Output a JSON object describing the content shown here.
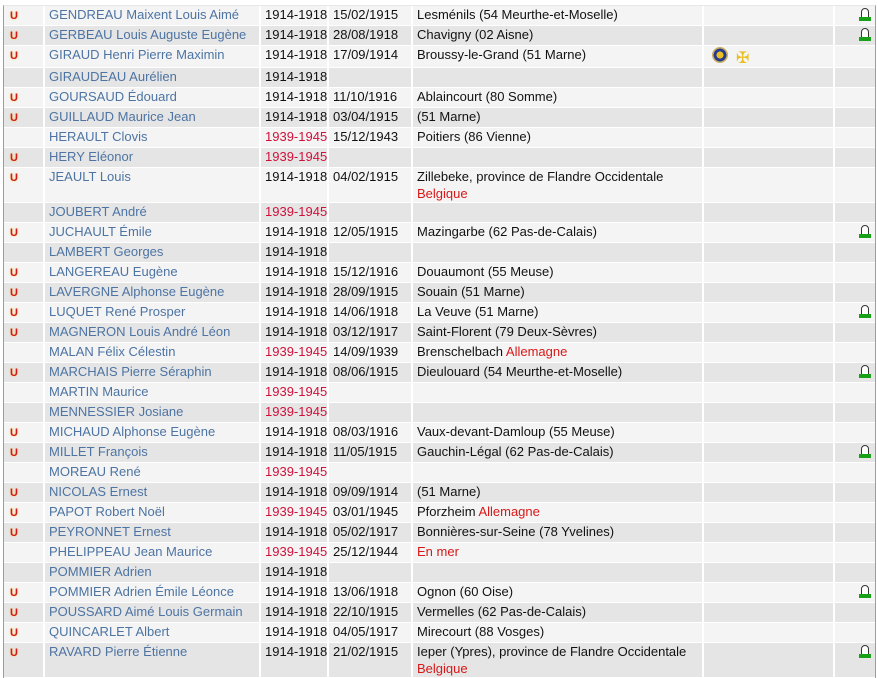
{
  "colors": {
    "name_link": "#4d74a3",
    "ww2_period": "#d0103a",
    "country": "#d81818",
    "grave_icon": "#19a019"
  },
  "rows": [
    {
      "icon": true,
      "name": "GENDREAU Maixent Louis Aimé",
      "period": "1914-1918",
      "date": "15/02/1915",
      "place": "Lesménils (54 Meurthe-et-Moselle)",
      "country": "",
      "grave": true,
      "medals": false
    },
    {
      "icon": true,
      "name": "GERBEAU Louis Auguste Eugène",
      "period": "1914-1918",
      "date": "28/08/1918",
      "place": "Chavigny (02 Aisne)",
      "country": "",
      "grave": true,
      "medals": false
    },
    {
      "icon": true,
      "name": "GIRAUD Henri Pierre Maximin",
      "period": "1914-1918",
      "date": "17/09/1914",
      "place": "Broussy-le-Grand (51 Marne)",
      "country": "",
      "grave": false,
      "medals": true
    },
    {
      "icon": false,
      "name": "GIRAUDEAU Aurélien",
      "period": "1914-1918",
      "date": "",
      "place": "",
      "country": "",
      "grave": false,
      "medals": false
    },
    {
      "icon": true,
      "name": "GOURSAUD Édouard",
      "period": "1914-1918",
      "date": "11/10/1916",
      "place": "Ablaincourt (80 Somme)",
      "country": "",
      "grave": false,
      "medals": false
    },
    {
      "icon": true,
      "name": "GUILLAUD Maurice Jean",
      "period": "1914-1918",
      "date": "03/04/1915",
      "place": "(51 Marne)",
      "country": "",
      "grave": false,
      "medals": false
    },
    {
      "icon": false,
      "name": "HERAULT Clovis",
      "period": "1939-1945",
      "date": "15/12/1943",
      "place": "Poitiers (86 Vienne)",
      "country": "",
      "grave": false,
      "medals": false
    },
    {
      "icon": true,
      "name": "HERY Eléonor",
      "period": "1939-1945",
      "date": "",
      "place": "",
      "country": "",
      "grave": false,
      "medals": false
    },
    {
      "icon": true,
      "name": "JEAULT Louis",
      "period": "1914-1918",
      "date": "04/02/1915",
      "place": "Zillebeke, province de Flandre Occidentale",
      "country": "Belgique",
      "country_newline": true,
      "grave": false,
      "medals": false
    },
    {
      "icon": false,
      "name": "JOUBERT André",
      "period": "1939-1945",
      "date": "",
      "place": "",
      "country": "",
      "grave": false,
      "medals": false
    },
    {
      "icon": true,
      "name": "JUCHAULT Émile",
      "period": "1914-1918",
      "date": "12/05/1915",
      "place": "Mazingarbe (62 Pas-de-Calais)",
      "country": "",
      "grave": true,
      "medals": false
    },
    {
      "icon": false,
      "name": "LAMBERT Georges",
      "period": "1914-1918",
      "date": "",
      "place": "",
      "country": "",
      "grave": false,
      "medals": false
    },
    {
      "icon": true,
      "name": "LANGEREAU Eugène",
      "period": "1914-1918",
      "date": "15/12/1916",
      "place": "Douaumont (55 Meuse)",
      "country": "",
      "grave": false,
      "medals": false
    },
    {
      "icon": true,
      "name": "LAVERGNE Alphonse Eugène",
      "period": "1914-1918",
      "date": "28/09/1915",
      "place": "Souain (51 Marne)",
      "country": "",
      "grave": false,
      "medals": false
    },
    {
      "icon": true,
      "name": "LUQUET René Prosper",
      "period": "1914-1918",
      "date": "14/06/1918",
      "place": "La Veuve (51 Marne)",
      "country": "",
      "grave": true,
      "medals": false
    },
    {
      "icon": true,
      "name": "MAGNERON Louis André Léon",
      "period": "1914-1918",
      "date": "03/12/1917",
      "place": "Saint-Florent (79 Deux-Sèvres)",
      "country": "",
      "grave": false,
      "medals": false
    },
    {
      "icon": false,
      "name": "MALAN Félix Célestin",
      "period": "1939-1945",
      "date": "14/09/1939",
      "place": "Brenschelbach",
      "country": "Allemagne",
      "grave": false,
      "medals": false
    },
    {
      "icon": true,
      "name": "MARCHAIS Pierre Séraphin",
      "period": "1914-1918",
      "date": "08/06/1915",
      "place": "Dieulouard (54 Meurthe-et-Moselle)",
      "country": "",
      "grave": true,
      "medals": false
    },
    {
      "icon": false,
      "name": "MARTIN Maurice",
      "period": "1939-1945",
      "date": "",
      "place": "",
      "country": "",
      "grave": false,
      "medals": false
    },
    {
      "icon": false,
      "name": "MENNESSIER Josiane",
      "period": "1939-1945",
      "date": "",
      "place": "",
      "country": "",
      "grave": false,
      "medals": false
    },
    {
      "icon": true,
      "name": "MICHAUD Alphonse Eugène",
      "period": "1914-1918",
      "date": "08/03/1916",
      "place": "Vaux-devant-Damloup (55 Meuse)",
      "country": "",
      "grave": false,
      "medals": false
    },
    {
      "icon": true,
      "name": "MILLET François",
      "period": "1914-1918",
      "date": "11/05/1915",
      "place": "Gauchin-Légal (62 Pas-de-Calais)",
      "country": "",
      "grave": true,
      "medals": false
    },
    {
      "icon": false,
      "name": "MOREAU René",
      "period": "1939-1945",
      "date": "",
      "place": "",
      "country": "",
      "grave": false,
      "medals": false
    },
    {
      "icon": true,
      "name": "NICOLAS Ernest",
      "period": "1914-1918",
      "date": "09/09/1914",
      "place": "(51 Marne)",
      "country": "",
      "grave": false,
      "medals": false
    },
    {
      "icon": true,
      "name": "PAPOT Robert Noël",
      "period": "1939-1945",
      "date": "03/01/1945",
      "place": "Pforzheim",
      "country": "Allemagne",
      "grave": false,
      "medals": false
    },
    {
      "icon": true,
      "name": "PEYRONNET Ernest",
      "period": "1914-1918",
      "date": "05/02/1917",
      "place": "Bonnières-sur-Seine (78 Yvelines)",
      "country": "",
      "grave": false,
      "medals": false
    },
    {
      "icon": false,
      "name": "PHELIPPEAU Jean Maurice",
      "period": "1939-1945",
      "date": "25/12/1944",
      "place": "",
      "country": "En mer",
      "grave": false,
      "medals": false
    },
    {
      "icon": false,
      "name": "POMMIER Adrien",
      "period": "1914-1918",
      "date": "",
      "place": "",
      "country": "",
      "grave": false,
      "medals": false
    },
    {
      "icon": true,
      "name": "POMMIER Adrien Émile Léonce",
      "period": "1914-1918",
      "date": "13/06/1918",
      "place": "Ognon (60 Oise)",
      "country": "",
      "grave": true,
      "medals": false
    },
    {
      "icon": true,
      "name": "POUSSARD Aimé Louis Germain",
      "period": "1914-1918",
      "date": "22/10/1915",
      "place": "Vermelles (62 Pas-de-Calais)",
      "country": "",
      "grave": false,
      "medals": false
    },
    {
      "icon": true,
      "name": "QUINCARLET Albert",
      "period": "1914-1918",
      "date": "04/05/1917",
      "place": "Mirecourt (88 Vosges)",
      "country": "",
      "grave": false,
      "medals": false
    },
    {
      "icon": true,
      "name": "RAVARD Pierre Étienne",
      "period": "1914-1918",
      "date": "21/02/1915",
      "place": "Ieper (Ypres), province de Flandre Occidentale",
      "country": "Belgique",
      "country_newline": true,
      "grave": true,
      "medals": false
    }
  ]
}
